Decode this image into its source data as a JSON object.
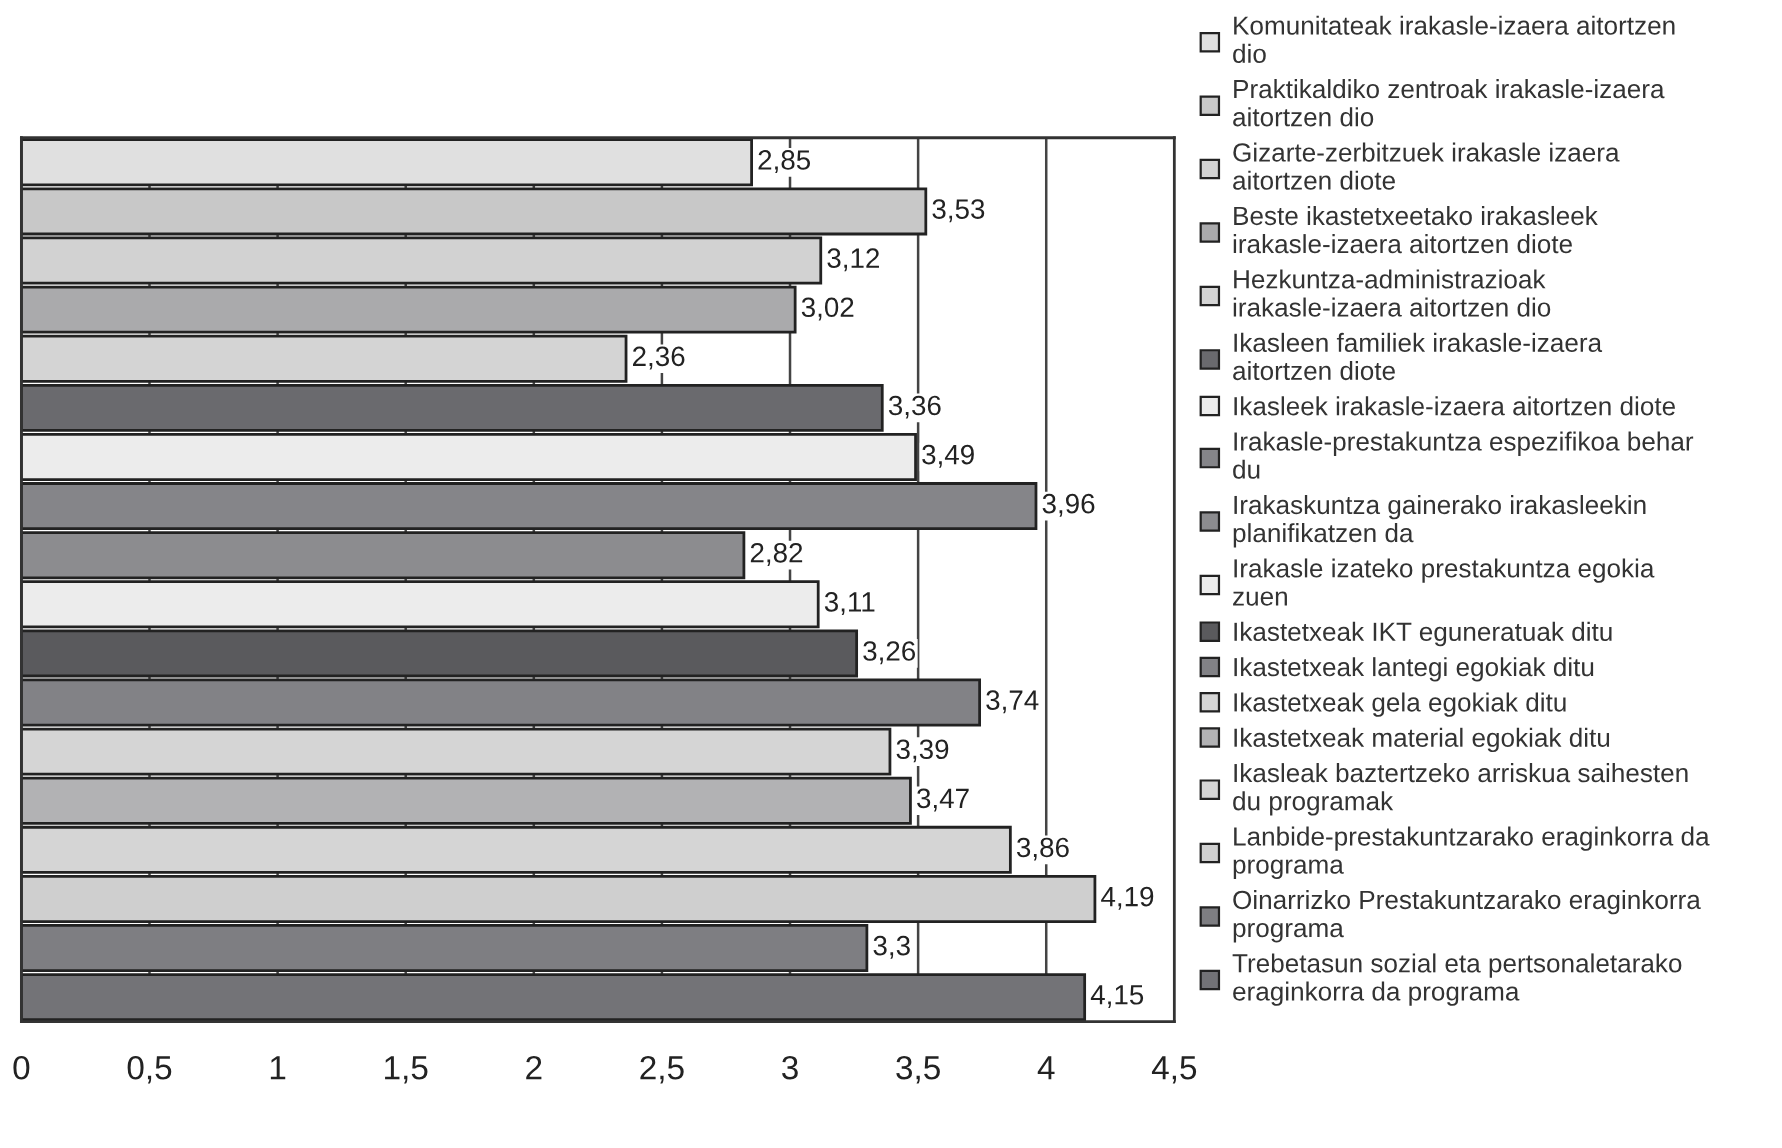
{
  "chart_data": {
    "type": "bar",
    "orientation": "horizontal",
    "categories": [
      null,
      null,
      null,
      null,
      null,
      null,
      null,
      null,
      null,
      null,
      null,
      null,
      null,
      null,
      null,
      null,
      null,
      null
    ],
    "series": [
      {
        "name": "Komunitateak irakasle-izaera aitortzen dio",
        "color": "#e0e0e0",
        "values": [
          2.85,
          null,
          null,
          null,
          null,
          null,
          null,
          null,
          null,
          null,
          null,
          null,
          null,
          null,
          null,
          null,
          null,
          null
        ],
        "value_labels": [
          "2,85",
          null,
          null,
          null,
          null,
          null,
          null,
          null,
          null,
          null,
          null,
          null,
          null,
          null,
          null,
          null,
          null,
          null
        ]
      },
      {
        "name": "Praktikaldiko zentroak irakasle-izaera aitortzen dio",
        "color": "#c8c8c8",
        "values": [
          null,
          3.53,
          null,
          null,
          null,
          null,
          null,
          null,
          null,
          null,
          null,
          null,
          null,
          null,
          null,
          null,
          null,
          null
        ],
        "value_labels": [
          null,
          "3,53",
          null,
          null,
          null,
          null,
          null,
          null,
          null,
          null,
          null,
          null,
          null,
          null,
          null,
          null,
          null,
          null
        ]
      },
      {
        "name": "Gizarte-zerbitzuek irakasle izaera aitortzen diote",
        "color": "#d2d2d2",
        "values": [
          null,
          null,
          3.12,
          null,
          null,
          null,
          null,
          null,
          null,
          null,
          null,
          null,
          null,
          null,
          null,
          null,
          null,
          null
        ],
        "value_labels": [
          null,
          null,
          "3,12",
          null,
          null,
          null,
          null,
          null,
          null,
          null,
          null,
          null,
          null,
          null,
          null,
          null,
          null,
          null
        ]
      },
      {
        "name": "Beste ikastetxeetako irakasleek irakasle-izaera aitortzen diote",
        "color": "#aaaaac",
        "values": [
          null,
          null,
          null,
          3.02,
          null,
          null,
          null,
          null,
          null,
          null,
          null,
          null,
          null,
          null,
          null,
          null,
          null,
          null
        ],
        "value_labels": [
          null,
          null,
          null,
          "3,02",
          null,
          null,
          null,
          null,
          null,
          null,
          null,
          null,
          null,
          null,
          null,
          null,
          null,
          null
        ]
      },
      {
        "name": "Hezkuntza-administrazioak irakasle-izaera aitortzen dio",
        "color": "#d4d4d4",
        "values": [
          null,
          null,
          null,
          null,
          2.36,
          null,
          null,
          null,
          null,
          null,
          null,
          null,
          null,
          null,
          null,
          null,
          null,
          null
        ],
        "value_labels": [
          null,
          null,
          null,
          null,
          "2,36",
          null,
          null,
          null,
          null,
          null,
          null,
          null,
          null,
          null,
          null,
          null,
          null,
          null
        ]
      },
      {
        "name": "Ikasleen familiek irakasle-izaera aitortzen diote",
        "color": "#6a6a6e",
        "values": [
          null,
          null,
          null,
          null,
          null,
          3.36,
          null,
          null,
          null,
          null,
          null,
          null,
          null,
          null,
          null,
          null,
          null,
          null
        ],
        "value_labels": [
          null,
          null,
          null,
          null,
          null,
          "3,36",
          null,
          null,
          null,
          null,
          null,
          null,
          null,
          null,
          null,
          null,
          null,
          null
        ]
      },
      {
        "name": "Ikasleek irakasle-izaera aitortzen diote",
        "color": "#ececec",
        "values": [
          null,
          null,
          null,
          null,
          null,
          null,
          3.49,
          null,
          null,
          null,
          null,
          null,
          null,
          null,
          null,
          null,
          null,
          null
        ],
        "value_labels": [
          null,
          null,
          null,
          null,
          null,
          null,
          "3,49",
          null,
          null,
          null,
          null,
          null,
          null,
          null,
          null,
          null,
          null,
          null
        ]
      },
      {
        "name": "Irakasle-prestakuntza espezifikoa behar du",
        "color": "#858589",
        "values": [
          null,
          null,
          null,
          null,
          null,
          null,
          null,
          3.96,
          null,
          null,
          null,
          null,
          null,
          null,
          null,
          null,
          null,
          null
        ],
        "value_labels": [
          null,
          null,
          null,
          null,
          null,
          null,
          null,
          "3,96",
          null,
          null,
          null,
          null,
          null,
          null,
          null,
          null,
          null,
          null
        ]
      },
      {
        "name": "Irakaskuntza gainerako irakasleekin planifikatzen da",
        "color": "#8c8c8f",
        "values": [
          null,
          null,
          null,
          null,
          null,
          null,
          null,
          null,
          2.82,
          null,
          null,
          null,
          null,
          null,
          null,
          null,
          null,
          null
        ],
        "value_labels": [
          null,
          null,
          null,
          null,
          null,
          null,
          null,
          null,
          "2,82",
          null,
          null,
          null,
          null,
          null,
          null,
          null,
          null,
          null
        ]
      },
      {
        "name": "Irakasle izateko prestakuntza egokia zuen",
        "color": "#ececec",
        "values": [
          null,
          null,
          null,
          null,
          null,
          null,
          null,
          null,
          null,
          3.11,
          null,
          null,
          null,
          null,
          null,
          null,
          null,
          null
        ],
        "value_labels": [
          null,
          null,
          null,
          null,
          null,
          null,
          null,
          null,
          null,
          "3,11",
          null,
          null,
          null,
          null,
          null,
          null,
          null,
          null
        ]
      },
      {
        "name": "Ikastetxeak IKT eguneratuak ditu",
        "color": "#5a5a5d",
        "values": [
          null,
          null,
          null,
          null,
          null,
          null,
          null,
          null,
          null,
          null,
          3.26,
          null,
          null,
          null,
          null,
          null,
          null,
          null
        ],
        "value_labels": [
          null,
          null,
          null,
          null,
          null,
          null,
          null,
          null,
          null,
          null,
          "3,26",
          null,
          null,
          null,
          null,
          null,
          null,
          null
        ]
      },
      {
        "name": "Ikastetxeak lantegi egokiak ditu",
        "color": "#828286",
        "values": [
          null,
          null,
          null,
          null,
          null,
          null,
          null,
          null,
          null,
          null,
          null,
          3.74,
          null,
          null,
          null,
          null,
          null,
          null
        ],
        "value_labels": [
          null,
          null,
          null,
          null,
          null,
          null,
          null,
          null,
          null,
          null,
          null,
          "3,74",
          null,
          null,
          null,
          null,
          null,
          null
        ]
      },
      {
        "name": "Ikastetxeak gela egokiak ditu",
        "color": "#d5d5d5",
        "values": [
          null,
          null,
          null,
          null,
          null,
          null,
          null,
          null,
          null,
          null,
          null,
          null,
          3.39,
          null,
          null,
          null,
          null,
          null
        ],
        "value_labels": [
          null,
          null,
          null,
          null,
          null,
          null,
          null,
          null,
          null,
          null,
          null,
          null,
          "3,39",
          null,
          null,
          null,
          null,
          null
        ]
      },
      {
        "name": "Ikastetxeak material egokiak ditu",
        "color": "#b2b2b4",
        "values": [
          null,
          null,
          null,
          null,
          null,
          null,
          null,
          null,
          null,
          null,
          null,
          null,
          null,
          3.47,
          null,
          null,
          null,
          null
        ],
        "value_labels": [
          null,
          null,
          null,
          null,
          null,
          null,
          null,
          null,
          null,
          null,
          null,
          null,
          null,
          "3,47",
          null,
          null,
          null,
          null
        ]
      },
      {
        "name": "Ikasleak baztertzeko arriskua saihesten du programak",
        "color": "#d5d5d5",
        "values": [
          null,
          null,
          null,
          null,
          null,
          null,
          null,
          null,
          null,
          null,
          null,
          null,
          null,
          null,
          3.86,
          null,
          null,
          null
        ],
        "value_labels": [
          null,
          null,
          null,
          null,
          null,
          null,
          null,
          null,
          null,
          null,
          null,
          null,
          null,
          null,
          "3,86",
          null,
          null,
          null
        ]
      },
      {
        "name": "Lanbide-prestakuntzarako eraginkorra da programa",
        "color": "#cfcfcf",
        "values": [
          null,
          null,
          null,
          null,
          null,
          null,
          null,
          null,
          null,
          null,
          null,
          null,
          null,
          null,
          null,
          4.19,
          null,
          null
        ],
        "value_labels": [
          null,
          null,
          null,
          null,
          null,
          null,
          null,
          null,
          null,
          null,
          null,
          null,
          null,
          null,
          null,
          "4,19",
          null,
          null
        ]
      },
      {
        "name": "Oinarrizko Prestakuntzarako eraginkorra programa",
        "color": "#7e7e82",
        "values": [
          null,
          null,
          null,
          null,
          null,
          null,
          null,
          null,
          null,
          null,
          null,
          null,
          null,
          null,
          null,
          null,
          3.3,
          null
        ],
        "value_labels": [
          null,
          null,
          null,
          null,
          null,
          null,
          null,
          null,
          null,
          null,
          null,
          null,
          null,
          null,
          null,
          null,
          "3,3",
          null
        ]
      },
      {
        "name": "Trebetasun sozial eta pertsonaletarako eraginkorra da programa",
        "color": "#737377",
        "values": [
          null,
          null,
          null,
          null,
          null,
          null,
          null,
          null,
          null,
          null,
          null,
          null,
          null,
          null,
          null,
          null,
          null,
          4.15
        ],
        "value_labels": [
          null,
          null,
          null,
          null,
          null,
          null,
          null,
          null,
          null,
          null,
          null,
          null,
          null,
          null,
          null,
          null,
          null,
          "4,15"
        ]
      }
    ],
    "xlim": [
      0,
      4.5
    ],
    "xticks": [
      0,
      {
        "value": 0.5,
        "label": "0,5"
      },
      1,
      {
        "value": 1.5,
        "label": "1,5"
      },
      2,
      {
        "value": 2.5,
        "label": "2,5"
      },
      3,
      {
        "value": 3.5,
        "label": "3,5"
      },
      4,
      {
        "value": 4.5,
        "label": "4,5"
      }
    ],
    "grid": "x",
    "legend": "right"
  }
}
